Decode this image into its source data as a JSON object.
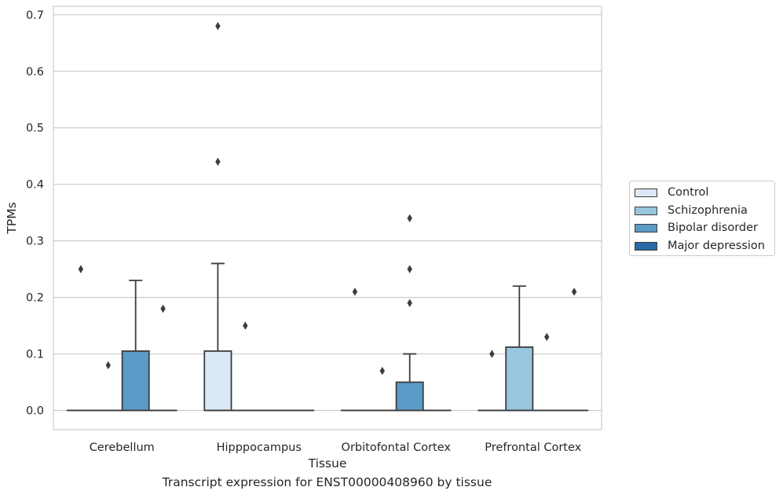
{
  "caption": "Transcript expression for ENST00000408960 by tissue",
  "chart_data": {
    "type": "box",
    "xlabel": "Tissue",
    "ylabel": "TPMs",
    "ylim": [
      -0.034,
      0.715
    ],
    "yticks": [
      0.0,
      0.1,
      0.2,
      0.3,
      0.4,
      0.5,
      0.6,
      0.7
    ],
    "ytick_labels": [
      "0.0",
      "0.1",
      "0.2",
      "0.3",
      "0.4",
      "0.5",
      "0.6",
      "0.7"
    ],
    "grid": "horizontal",
    "legend_position": "outside-right",
    "categories": [
      "Cerebellum",
      "Hipppocampus",
      "Orbitofontal Cortex",
      "Prefrontal Cortex"
    ],
    "series": [
      {
        "name": "Control",
        "color": "#dbe9f6",
        "boxes": [
          {
            "q1": 0,
            "median": 0,
            "q3": 0,
            "whisker_low": 0,
            "whisker_high": 0,
            "outliers": [
              0.25
            ]
          },
          {
            "q1": 0,
            "median": 0,
            "q3": 0.105,
            "whisker_low": 0,
            "whisker_high": 0.26,
            "outliers": [
              0.44,
              0.68
            ]
          },
          {
            "q1": 0,
            "median": 0,
            "q3": 0,
            "whisker_low": 0,
            "whisker_high": 0,
            "outliers": [
              0.21
            ]
          },
          {
            "q1": 0,
            "median": 0,
            "q3": 0,
            "whisker_low": 0,
            "whisker_high": 0,
            "outliers": [
              0.1
            ]
          }
        ]
      },
      {
        "name": "Schizophrenia",
        "color": "#9ac5de",
        "boxes": [
          {
            "q1": 0,
            "median": 0,
            "q3": 0,
            "whisker_low": 0,
            "whisker_high": 0,
            "outliers": [
              0.08
            ]
          },
          {
            "q1": 0,
            "median": 0,
            "q3": 0,
            "whisker_low": 0,
            "whisker_high": 0,
            "outliers": [
              0.15
            ]
          },
          {
            "q1": 0,
            "median": 0,
            "q3": 0,
            "whisker_low": 0,
            "whisker_high": 0,
            "outliers": [
              0.07
            ]
          },
          {
            "q1": 0,
            "median": 0,
            "q3": 0.112,
            "whisker_low": 0,
            "whisker_high": 0.22,
            "outliers": []
          }
        ]
      },
      {
        "name": "Bipolar disorder",
        "color": "#5a9bc8",
        "boxes": [
          {
            "q1": 0,
            "median": 0,
            "q3": 0.105,
            "whisker_low": 0,
            "whisker_high": 0.23,
            "outliers": []
          },
          {
            "q1": 0,
            "median": 0,
            "q3": 0,
            "whisker_low": 0,
            "whisker_high": 0,
            "outliers": []
          },
          {
            "q1": 0,
            "median": 0,
            "q3": 0.05,
            "whisker_low": 0,
            "whisker_high": 0.1,
            "outliers": [
              0.19,
              0.25,
              0.34
            ]
          },
          {
            "q1": 0,
            "median": 0,
            "q3": 0,
            "whisker_low": 0,
            "whisker_high": 0,
            "outliers": [
              0.13
            ]
          }
        ]
      },
      {
        "name": "Major depression",
        "color": "#2a69a8",
        "boxes": [
          {
            "q1": 0,
            "median": 0,
            "q3": 0,
            "whisker_low": 0,
            "whisker_high": 0,
            "outliers": [
              0.18
            ]
          },
          {
            "q1": 0,
            "median": 0,
            "q3": 0,
            "whisker_low": 0,
            "whisker_high": 0,
            "outliers": []
          },
          {
            "q1": 0,
            "median": 0,
            "q3": 0,
            "whisker_low": 0,
            "whisker_high": 0,
            "outliers": []
          },
          {
            "q1": 0,
            "median": 0,
            "q3": 0,
            "whisker_low": 0,
            "whisker_high": 0,
            "outliers": [
              0.21
            ]
          }
        ]
      }
    ]
  },
  "colors": {
    "grid": "#cccccc",
    "frame": "#cccccc",
    "box_edge": "#3d3d3d",
    "outlier": "#3d3d3d"
  }
}
